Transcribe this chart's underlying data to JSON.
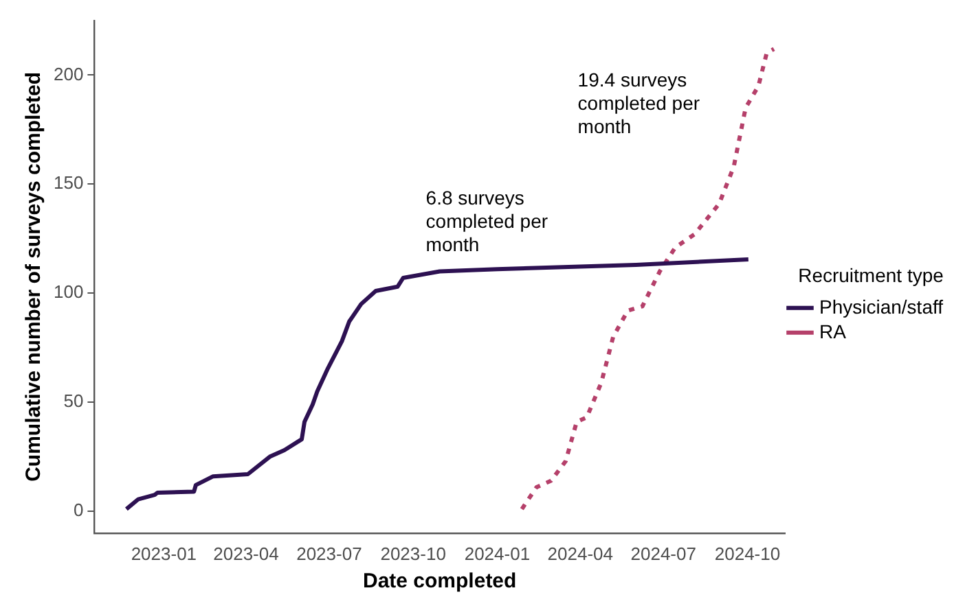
{
  "chart_data": {
    "type": "line",
    "xlabel": "Date completed",
    "ylabel": "Cumulative number of surveys completed",
    "legend_title": "Recruitment type",
    "legend": "right",
    "grid": false,
    "marker": "none",
    "xlim": [
      "2022-10-17",
      "2024-11-11"
    ],
    "xticks": [
      {
        "value": "2023-01-01",
        "label": "2023-01"
      },
      {
        "value": "2023-04-01",
        "label": "2023-04"
      },
      {
        "value": "2023-07-01",
        "label": "2023-07"
      },
      {
        "value": "2023-10-01",
        "label": "2023-10"
      },
      {
        "value": "2024-01-01",
        "label": "2024-01"
      },
      {
        "value": "2024-04-01",
        "label": "2024-04"
      },
      {
        "value": "2024-07-01",
        "label": "2024-07"
      },
      {
        "value": "2024-10-01",
        "label": "2024-10"
      }
    ],
    "ylim": [
      -10,
      225
    ],
    "yticks": [
      0,
      50,
      100,
      150,
      200
    ],
    "series": [
      {
        "name": "Physician/staff",
        "color": "#2d1152",
        "line_style": "solid",
        "x": [
          "2022-11-21",
          "2022-12-04",
          "2022-12-22",
          "2022-12-25",
          "2023-02-03",
          "2023-02-05",
          "2023-02-24",
          "2023-04-03",
          "2023-04-27",
          "2023-05-13",
          "2023-06-01",
          "2023-06-04",
          "2023-06-13",
          "2023-06-18",
          "2023-06-29",
          "2023-07-15",
          "2023-07-23",
          "2023-08-05",
          "2023-08-21",
          "2023-09-14",
          "2023-09-20",
          "2023-10-30",
          "2024-01-01",
          "2024-06-01",
          "2024-10-02"
        ],
        "values": [
          1,
          5.5,
          7.5,
          8.5,
          9,
          12,
          16,
          17,
          25,
          28,
          33,
          41,
          49,
          55,
          65,
          78,
          87,
          95,
          101,
          103,
          107,
          110,
          111,
          113,
          115.5
        ]
      },
      {
        "name": "RA",
        "color": "#b5406a",
        "line_style": "dashed",
        "x": [
          "2024-01-28",
          "2024-02-13",
          "2024-02-29",
          "2024-03-16",
          "2024-03-28",
          "2024-04-08",
          "2024-04-24",
          "2024-05-07",
          "2024-05-23",
          "2024-06-08",
          "2024-06-27",
          "2024-07-14",
          "2024-08-04",
          "2024-08-31",
          "2024-09-16",
          "2024-09-29",
          "2024-10-13",
          "2024-10-22",
          "2024-10-30"
        ],
        "values": [
          1,
          11,
          14,
          23,
          41,
          43,
          59,
          80,
          92,
          94,
          110,
          121,
          127,
          141,
          158,
          185,
          195,
          210,
          212
        ]
      }
    ],
    "annotations": [
      "6.8 surveys completed per month",
      "19.4 surveys completed per month"
    ]
  }
}
